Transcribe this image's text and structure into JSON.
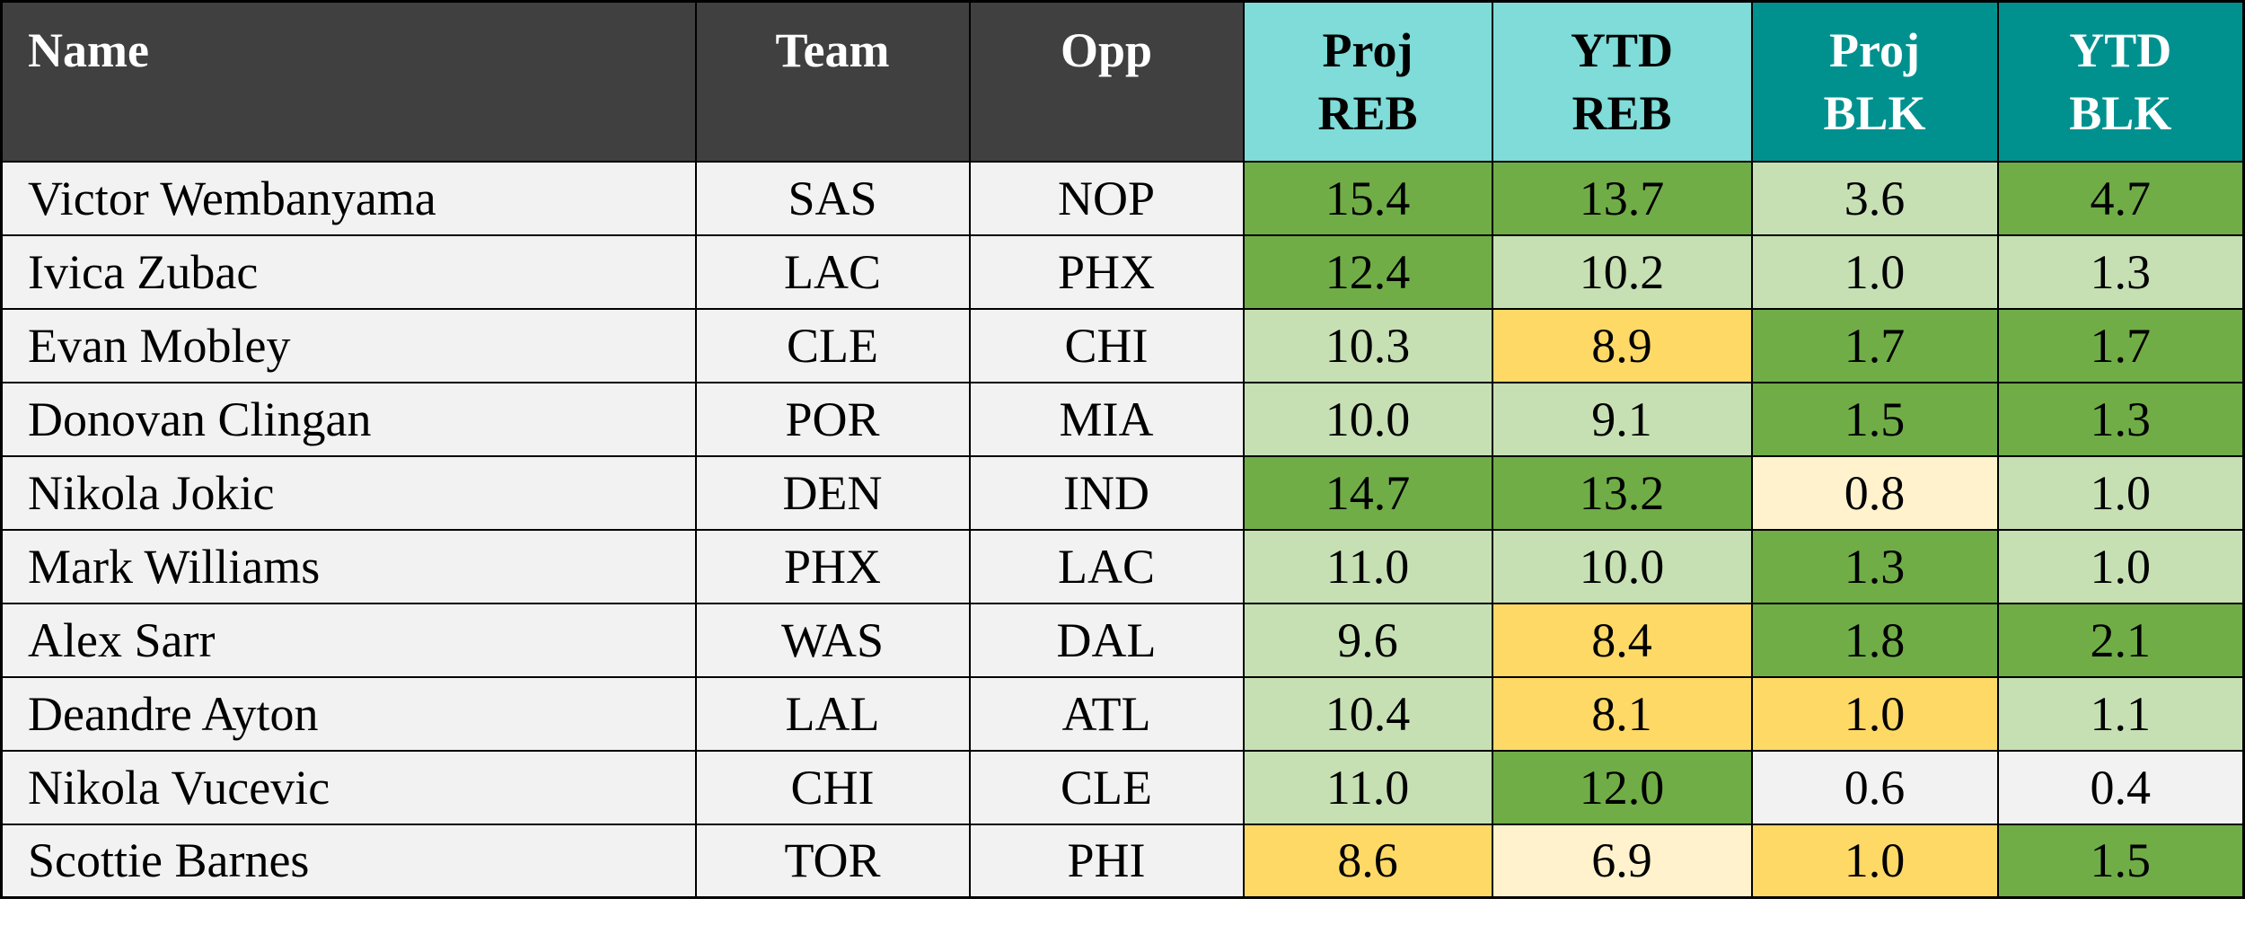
{
  "table": {
    "header": [
      [
        "Name"
      ],
      [
        "Team"
      ],
      [
        "Opp"
      ],
      [
        "Proj",
        "REB"
      ],
      [
        "YTD",
        "REB"
      ],
      [
        "Proj",
        "BLK"
      ],
      [
        "YTD",
        "BLK"
      ]
    ],
    "header_colors": [
      "#404040",
      "#404040",
      "#404040",
      "#7fdcd8",
      "#7fdcd8",
      "#00918f",
      "#00918f"
    ],
    "header_text_colors": [
      "#ffffff",
      "#ffffff",
      "#ffffff",
      "#000000",
      "#000000",
      "#ffffff",
      "#ffffff"
    ],
    "rows": [
      [
        "Victor Wembanyama",
        "SAS",
        "NOP",
        "15.4",
        "13.7",
        "3.6",
        "4.7"
      ],
      [
        "Ivica Zubac",
        "LAC",
        "PHX",
        "12.4",
        "10.2",
        "1.0",
        "1.3"
      ],
      [
        "Evan Mobley",
        "CLE",
        "CHI",
        "10.3",
        "8.9",
        "1.7",
        "1.7"
      ],
      [
        "Donovan Clingan",
        "POR",
        "MIA",
        "10.0",
        "9.1",
        "1.5",
        "1.3"
      ],
      [
        "Nikola Jokic",
        "DEN",
        "IND",
        "14.7",
        "13.2",
        "0.8",
        "1.0"
      ],
      [
        "Mark Williams",
        "PHX",
        "LAC",
        "11.0",
        "10.0",
        "1.3",
        "1.0"
      ],
      [
        "Alex Sarr",
        "WAS",
        "DAL",
        "9.6",
        "8.4",
        "1.8",
        "2.1"
      ],
      [
        "Deandre Ayton",
        "LAL",
        "ATL",
        "10.4",
        "8.1",
        "1.0",
        "1.1"
      ],
      [
        "Nikola Vucevic",
        "CHI",
        "CLE",
        "11.0",
        "12.0",
        "0.6",
        "0.4"
      ],
      [
        "Scottie Barnes",
        "TOR",
        "PHI",
        "8.6",
        "6.9",
        "1.0",
        "1.5"
      ]
    ],
    "cell_colors": [
      [
        "#f2f2f2",
        "#f2f2f2",
        "#f2f2f2",
        "#70ad47",
        "#70ad47",
        "#c6e0b4",
        "#70ad47"
      ],
      [
        "#f2f2f2",
        "#f2f2f2",
        "#f2f2f2",
        "#70ad47",
        "#c6e0b4",
        "#c6e0b4",
        "#c6e0b4"
      ],
      [
        "#f2f2f2",
        "#f2f2f2",
        "#f2f2f2",
        "#c6e0b4",
        "#ffd966",
        "#70ad47",
        "#70ad47"
      ],
      [
        "#f2f2f2",
        "#f2f2f2",
        "#f2f2f2",
        "#c6e0b4",
        "#c6e0b4",
        "#70ad47",
        "#70ad47"
      ],
      [
        "#f2f2f2",
        "#f2f2f2",
        "#f2f2f2",
        "#70ad47",
        "#70ad47",
        "#fff2cc",
        "#c6e0b4"
      ],
      [
        "#f2f2f2",
        "#f2f2f2",
        "#f2f2f2",
        "#c6e0b4",
        "#c6e0b4",
        "#70ad47",
        "#c6e0b4"
      ],
      [
        "#f2f2f2",
        "#f2f2f2",
        "#f2f2f2",
        "#c6e0b4",
        "#ffd966",
        "#70ad47",
        "#70ad47"
      ],
      [
        "#f2f2f2",
        "#f2f2f2",
        "#f2f2f2",
        "#c6e0b4",
        "#ffd966",
        "#ffd966",
        "#c6e0b4"
      ],
      [
        "#f2f2f2",
        "#f2f2f2",
        "#f2f2f2",
        "#c6e0b4",
        "#70ad47",
        "#f2f2f2",
        "#f2f2f2"
      ],
      [
        "#f2f2f2",
        "#f2f2f2",
        "#f2f2f2",
        "#ffd966",
        "#fff2cc",
        "#ffd966",
        "#70ad47"
      ]
    ]
  }
}
